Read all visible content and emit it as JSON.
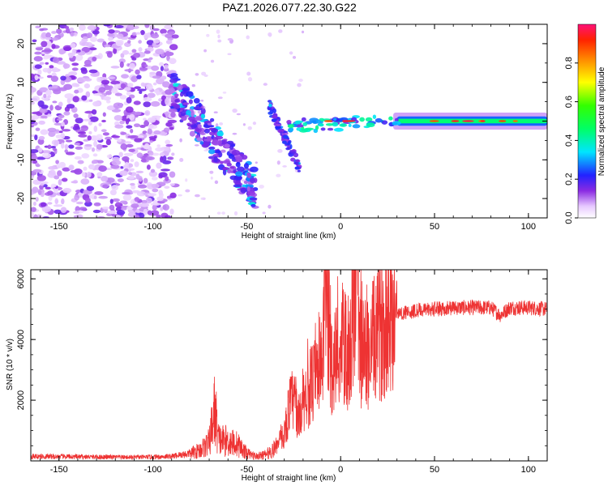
{
  "title": "PAZ1.2026.077.22.30.G22",
  "chart_data": [
    {
      "type": "heatmap",
      "name": "spectrogram",
      "xlabel": "Height of straight line (km)",
      "ylabel": "Frequency (Hz)",
      "xlim": [
        -165,
        110
      ],
      "ylim": [
        -25,
        25
      ],
      "x_ticks": [
        -150,
        -100,
        -50,
        0,
        50,
        100
      ],
      "y_ticks": [
        -20,
        -10,
        0,
        10,
        20
      ],
      "colorbar": {
        "label": "Normalized spectral amplitude",
        "range": [
          0,
          1
        ],
        "ticks": [
          0.0,
          0.2,
          0.4,
          0.6,
          0.8
        ],
        "tick_labels": [
          "0.0",
          "0.2",
          "0.4",
          "0.6",
          "0.8"
        ]
      },
      "features": [
        {
          "description": "scattered noise",
          "x_range": [
            -165,
            -88
          ],
          "y_range": [
            -25,
            25
          ],
          "amplitude": 0.15
        },
        {
          "description": "descending branch",
          "x_range": [
            -90,
            -45
          ],
          "y_start": 8,
          "y_end": -18,
          "amplitude": 0.3
        },
        {
          "description": "second branch",
          "x_range": [
            -38,
            -22
          ],
          "y_start": 4,
          "y_end": -12,
          "amplitude": 0.35
        },
        {
          "description": "main tone",
          "x_range": [
            -30,
            110
          ],
          "y": 0,
          "amplitude": 0.45
        }
      ]
    },
    {
      "type": "line",
      "name": "snr",
      "xlabel": "Height of straight line (km)",
      "ylabel": "SNR (10 * v/v)",
      "xlim": [
        -165,
        110
      ],
      "ylim": [
        0,
        6300
      ],
      "x_ticks": [
        -150,
        -100,
        -50,
        0,
        50,
        100
      ],
      "y_ticks": [
        2000,
        4000,
        6000
      ],
      "color": "#ee3333",
      "series": [
        {
          "name": "SNR",
          "x": [
            -165,
            -150,
            -130,
            -110,
            -100,
            -90,
            -80,
            -75,
            -70,
            -67,
            -65,
            -60,
            -55,
            -50,
            -45,
            -40,
            -35,
            -30,
            -27,
            -25,
            -22,
            -20,
            -15,
            -10,
            -8,
            -5,
            0,
            5,
            9,
            10,
            12,
            15,
            20,
            25,
            30,
            35,
            40,
            50,
            60,
            70,
            80,
            85,
            90,
            100,
            110
          ],
          "y": [
            150,
            140,
            130,
            120,
            130,
            150,
            250,
            350,
            600,
            1700,
            700,
            650,
            550,
            250,
            150,
            200,
            400,
            900,
            1900,
            2000,
            1400,
            2100,
            2500,
            3000,
            5800,
            3200,
            3700,
            3600,
            6200,
            3800,
            3500,
            3600,
            4200,
            4700,
            4850,
            4900,
            4950,
            5000,
            5050,
            5050,
            5050,
            4800,
            5050,
            5050,
            5000
          ]
        }
      ]
    }
  ]
}
